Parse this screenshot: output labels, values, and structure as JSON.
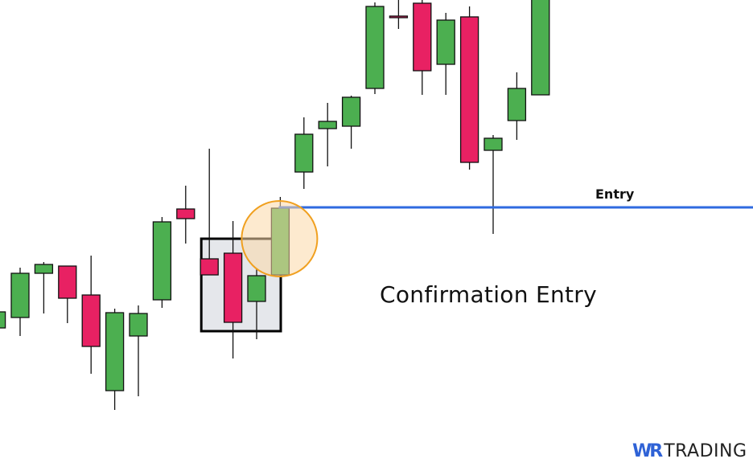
{
  "chart_data": {
    "type": "candlestick",
    "title": "",
    "xlabel": "",
    "ylabel": "",
    "axes_visible": false,
    "grid": false,
    "ylim": [
      19,
      600
    ],
    "colors": {
      "up": "#4caf50",
      "down": "#e82163",
      "outline": "#111111",
      "entry_line": "#2f6ae0",
      "circle_stroke": "#f0a020",
      "circle_fill": "#fcd9a8",
      "box_fill": "#e5e7eb",
      "box_stroke": "#000000"
    },
    "candles": [
      {
        "o": 192,
        "h": 214,
        "l": 192,
        "c": 212
      },
      {
        "o": 205,
        "h": 267,
        "l": 182,
        "c": 260
      },
      {
        "o": 260,
        "h": 274,
        "l": 210,
        "c": 271
      },
      {
        "o": 269,
        "h": 269,
        "l": 198,
        "c": 229
      },
      {
        "o": 233,
        "h": 282,
        "l": 135,
        "c": 169
      },
      {
        "o": 114,
        "h": 216,
        "l": 90,
        "c": 211
      },
      {
        "o": 182,
        "h": 220,
        "l": 107,
        "c": 210
      },
      {
        "o": 227,
        "h": 330,
        "l": 217,
        "c": 324
      },
      {
        "o": 340,
        "h": 369,
        "l": 297,
        "c": 328
      },
      {
        "o": 278,
        "h": 415,
        "l": 258,
        "c": 258
      },
      {
        "o": 285,
        "h": 325,
        "l": 154,
        "c": 199
      },
      {
        "o": 225,
        "h": 265,
        "l": 178,
        "c": 257
      },
      {
        "o": 258,
        "h": 355,
        "l": 255,
        "c": 341
      },
      {
        "o": 386,
        "h": 454,
        "l": 365,
        "c": 433
      },
      {
        "o": 440,
        "h": 472,
        "l": 393,
        "c": 449
      },
      {
        "o": 443,
        "h": 481,
        "l": 415,
        "c": 479
      },
      {
        "o": 490,
        "h": 597,
        "l": 483,
        "c": 592
      },
      {
        "o": 580,
        "h": 605,
        "l": 564,
        "c": 578
      },
      {
        "o": 596,
        "h": 605,
        "l": 482,
        "c": 512
      },
      {
        "o": 520,
        "h": 584,
        "l": 482,
        "c": 575
      },
      {
        "o": 579,
        "h": 592,
        "l": 389,
        "c": 398
      },
      {
        "o": 413,
        "h": 432,
        "l": 309,
        "c": 428
      },
      {
        "o": 450,
        "h": 510,
        "l": 426,
        "c": 490
      },
      {
        "o": 482,
        "h": 620,
        "l": 482,
        "c": 612
      }
    ],
    "annotations": {
      "entry": {
        "label": "Entry",
        "price": 342,
        "from_candle": 12
      },
      "confirmation_text": "Confirmation Entry",
      "box": {
        "from_candle": 9,
        "to_candle": 11,
        "price_low": 188,
        "price_high": 303
      },
      "circle": {
        "candle": 12,
        "price": 303
      }
    }
  },
  "logo": {
    "brand_a": "WR",
    "brand_b": "TRADING"
  }
}
